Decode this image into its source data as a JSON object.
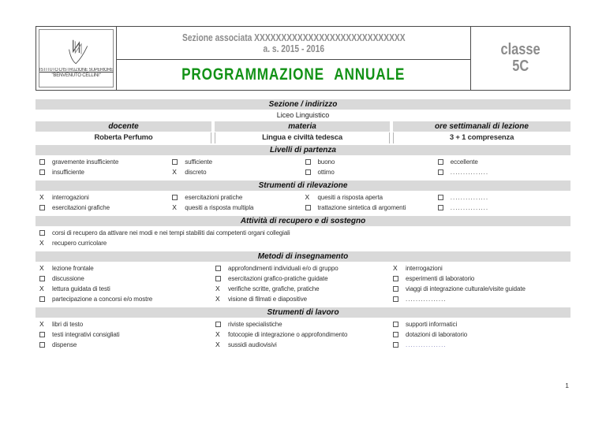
{
  "header": {
    "logo": {
      "institute": "ISTITUTO D'ISTRUZIONE SUPERIORE",
      "name": "\"BENVENUTO CELLINI\""
    },
    "sezione_associata": "Sezione associata XXXXXXXXXXXXXXXXXXXXXXXXXXXX",
    "anno_scolastico": "a. s. 2015 - 2016",
    "title": "PROGRAMMAZIONE ANNUALE",
    "classe_label": "classe",
    "classe_value": "5C"
  },
  "colors": {
    "title_green": "#129216",
    "header_gray": "#8c8c8c",
    "band_gray": "#d9d9d9",
    "dotted_blue": "#7a7ab8"
  },
  "info": {
    "section_header": "Sezione / indirizzo",
    "section_value": "Liceo Linguistico",
    "columns": [
      {
        "label": "docente",
        "value": "Roberta Perfumo"
      },
      {
        "label": "materia",
        "value": "Lingua e civiltà tedesca"
      },
      {
        "label": "ore settimanali  di lezione",
        "value": "3 + 1 compresenza"
      }
    ]
  },
  "sections": [
    {
      "title": "Livelli di partenza",
      "columns": 4,
      "rows": [
        [
          {
            "checked": false,
            "label": "gravemente insufficiente"
          },
          {
            "checked": false,
            "label": "sufficiente"
          },
          {
            "checked": false,
            "label": "buono"
          },
          {
            "checked": false,
            "label": "eccellente"
          }
        ],
        [
          {
            "checked": false,
            "label": "insufficiente"
          },
          {
            "checked": true,
            "label": "discreto"
          },
          {
            "checked": false,
            "label": "ottimo"
          },
          {
            "checked": false,
            "label": "...............",
            "dotted": true
          }
        ]
      ]
    },
    {
      "title": "Strumenti di rilevazione",
      "columns": 4,
      "rows": [
        [
          {
            "checked": true,
            "label": "interrogazioni"
          },
          {
            "checked": false,
            "label": "esercitazioni pratiche"
          },
          {
            "checked": true,
            "label": "quesiti a risposta aperta"
          },
          {
            "checked": false,
            "label": "...............",
            "dotted": true
          }
        ],
        [
          {
            "checked": false,
            "label": "esercitazioni grafiche"
          },
          {
            "checked": true,
            "label": "quesiti a risposta multipla"
          },
          {
            "checked": false,
            "label": "trattazione sintetica di argomenti"
          },
          {
            "checked": false,
            "label": "...............",
            "dotted": true
          }
        ]
      ]
    },
    {
      "title": "Attività di recupero e di sostegno",
      "columns": 1,
      "rows": [
        [
          {
            "checked": false,
            "label": "corsi di recupero da attivare nei modi e nei tempi stabiliti dai competenti organi collegiali"
          }
        ],
        [
          {
            "checked": true,
            "label": "recupero curricolare"
          }
        ]
      ]
    },
    {
      "title": "Metodi di insegnamento",
      "columns": 3,
      "rows": [
        [
          {
            "checked": true,
            "label": "lezione frontale"
          },
          {
            "checked": false,
            "label": "approfondimenti individuali e/o di gruppo"
          },
          {
            "checked": true,
            "label": "interrogazioni"
          }
        ],
        [
          {
            "checked": false,
            "label": "discussione"
          },
          {
            "checked": false,
            "label": "esercitazioni grafico-pratiche guidate"
          },
          {
            "checked": false,
            "label": "esperimenti di laboratorio"
          }
        ],
        [
          {
            "checked": true,
            "label": "lettura guidata di testi"
          },
          {
            "checked": true,
            "label": "verifiche scritte, grafiche, pratiche"
          },
          {
            "checked": false,
            "label": "viaggi di integrazione culturale/visite guidate"
          }
        ],
        [
          {
            "checked": false,
            "label": "partecipazione a concorsi e/o mostre"
          },
          {
            "checked": true,
            "label": "visione di filmati e diapositive"
          },
          {
            "checked": false,
            "label": "................",
            "dotted": true
          }
        ]
      ]
    },
    {
      "title": "Strumenti di lavoro",
      "columns": 3,
      "rows": [
        [
          {
            "checked": true,
            "label": "libri di testo"
          },
          {
            "checked": false,
            "label": "riviste specialistiche"
          },
          {
            "checked": false,
            "label": "supporti informatici"
          }
        ],
        [
          {
            "checked": false,
            "label": "testi integrativi consigliati"
          },
          {
            "checked": true,
            "label": "fotocopie di integrazione o approfondimento"
          },
          {
            "checked": false,
            "label": "dotazioni di laboratorio"
          }
        ],
        [
          {
            "checked": false,
            "label": "dispense"
          },
          {
            "checked": true,
            "label": "sussidi audiovisivi"
          },
          {
            "checked": false,
            "label": "................",
            "dotted": true,
            "blue": true
          }
        ]
      ]
    }
  ],
  "footer": {
    "page_number": "1"
  }
}
